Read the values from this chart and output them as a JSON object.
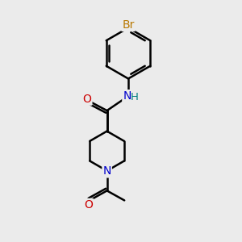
{
  "background_color": "#ebebeb",
  "bond_color": "#000000",
  "bond_width": 1.8,
  "atoms": {
    "Br": {
      "color": "#b87800",
      "fontsize": 9.5
    },
    "O": {
      "color": "#cc0000",
      "fontsize": 9.5
    },
    "N_amide": {
      "color": "#0000cc",
      "fontsize": 9.5
    },
    "H": {
      "color": "#008080",
      "fontsize": 9.5
    },
    "N_pip": {
      "color": "#0000cc",
      "fontsize": 9.5
    }
  },
  "figsize": [
    3.0,
    3.0
  ],
  "dpi": 100
}
